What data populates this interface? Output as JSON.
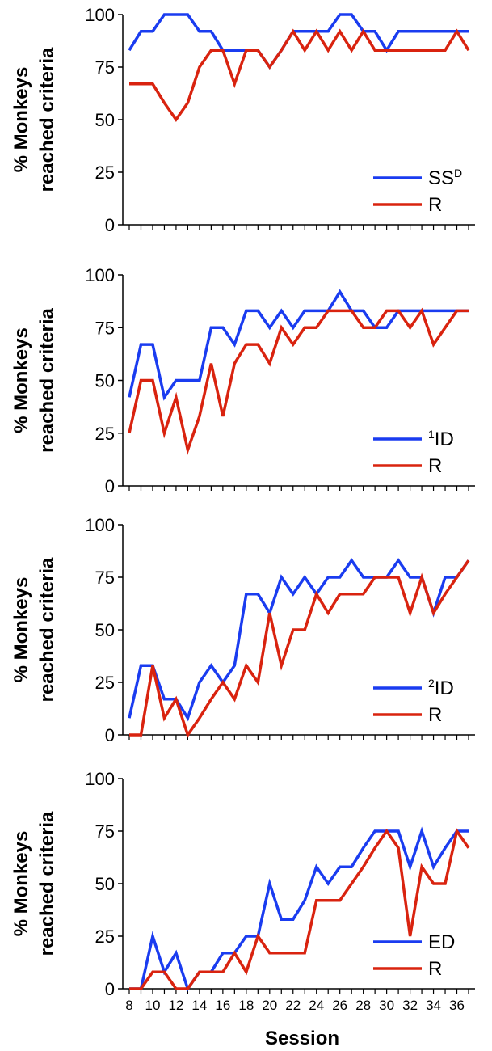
{
  "figure": {
    "xlabel": "Session"
  },
  "colors": {
    "series_a": "#1a3cf0",
    "series_b": "#d9230f",
    "axis": "#000000"
  },
  "chart_data": [
    {
      "type": "line",
      "ylabel_line1": "% Monkeys",
      "ylabel_line2": "reached criteria",
      "ylim": [
        0,
        100
      ],
      "yticks": [
        "0",
        "25",
        "50",
        "75",
        "100"
      ],
      "x": [
        8,
        9,
        10,
        11,
        12,
        13,
        14,
        15,
        16,
        17,
        18,
        19,
        20,
        21,
        22,
        23,
        24,
        25,
        26,
        27,
        28,
        29,
        30,
        31,
        32,
        33,
        34,
        35,
        36,
        37
      ],
      "legend": [
        {
          "base": "SS",
          "mark": "D",
          "mark_pos": "sup"
        },
        {
          "base": "R",
          "mark": "",
          "mark_pos": "none"
        }
      ],
      "series": [
        {
          "name": "SSᴰ",
          "values": [
            83,
            92,
            92,
            100,
            100,
            100,
            92,
            92,
            83,
            83,
            83,
            83,
            75,
            83,
            92,
            92,
            92,
            92,
            100,
            100,
            92,
            92,
            83,
            92,
            92,
            92,
            92,
            92,
            92,
            92
          ]
        },
        {
          "name": "R",
          "values": [
            67,
            67,
            67,
            58,
            50,
            58,
            75,
            83,
            83,
            67,
            83,
            83,
            75,
            83,
            92,
            83,
            92,
            83,
            92,
            83,
            92,
            83,
            83,
            83,
            83,
            83,
            83,
            83,
            92,
            83
          ]
        }
      ]
    },
    {
      "type": "line",
      "ylabel_line1": "% Monkeys",
      "ylabel_line2": "reached criteria",
      "ylim": [
        0,
        100
      ],
      "yticks": [
        "0",
        "25",
        "50",
        "75",
        "100"
      ],
      "x": [
        8,
        9,
        10,
        11,
        12,
        13,
        14,
        15,
        16,
        17,
        18,
        19,
        20,
        21,
        22,
        23,
        24,
        25,
        26,
        27,
        28,
        29,
        30,
        31,
        32,
        33,
        34,
        35,
        36,
        37
      ],
      "legend": [
        {
          "base": "ID",
          "mark": "1",
          "mark_pos": "pre"
        },
        {
          "base": "R",
          "mark": "",
          "mark_pos": "none"
        }
      ],
      "series": [
        {
          "name": "¹ID",
          "values": [
            42,
            67,
            67,
            42,
            50,
            50,
            50,
            75,
            75,
            67,
            83,
            83,
            75,
            83,
            75,
            83,
            83,
            83,
            92,
            83,
            83,
            75,
            75,
            83,
            83,
            83,
            83,
            83,
            83,
            83
          ]
        },
        {
          "name": "R",
          "values": [
            25,
            50,
            50,
            25,
            42,
            17,
            33,
            58,
            33,
            58,
            67,
            67,
            58,
            75,
            67,
            75,
            75,
            83,
            83,
            83,
            75,
            75,
            83,
            83,
            75,
            83,
            67,
            75,
            83,
            83
          ]
        }
      ]
    },
    {
      "type": "line",
      "ylabel_line1": "% Monkeys",
      "ylabel_line2": "reached criteria",
      "ylim": [
        0,
        100
      ],
      "yticks": [
        "0",
        "25",
        "50",
        "75",
        "100"
      ],
      "x": [
        8,
        9,
        10,
        11,
        12,
        13,
        14,
        15,
        16,
        17,
        18,
        19,
        20,
        21,
        22,
        23,
        24,
        25,
        26,
        27,
        28,
        29,
        30,
        31,
        32,
        33,
        34,
        35,
        36,
        37
      ],
      "legend": [
        {
          "base": "ID",
          "mark": "2",
          "mark_pos": "pre"
        },
        {
          "base": "R",
          "mark": "",
          "mark_pos": "none"
        }
      ],
      "series": [
        {
          "name": "²ID",
          "values": [
            8,
            33,
            33,
            17,
            17,
            8,
            25,
            33,
            25,
            33,
            67,
            67,
            58,
            75,
            67,
            75,
            67,
            75,
            75,
            83,
            75,
            75,
            75,
            83,
            75,
            75,
            58,
            75,
            75,
            83
          ]
        },
        {
          "name": "R",
          "values": [
            0,
            0,
            33,
            8,
            17,
            0,
            8,
            17,
            25,
            17,
            33,
            25,
            58,
            33,
            50,
            50,
            67,
            58,
            67,
            67,
            67,
            75,
            75,
            75,
            58,
            75,
            58,
            67,
            75,
            83
          ]
        }
      ]
    },
    {
      "type": "line",
      "ylabel_line1": "% Monkeys",
      "ylabel_line2": "reached criteria",
      "ylim": [
        0,
        100
      ],
      "yticks": [
        "0",
        "25",
        "50",
        "75",
        "100"
      ],
      "x": [
        8,
        9,
        10,
        11,
        12,
        13,
        14,
        15,
        16,
        17,
        18,
        19,
        20,
        21,
        22,
        23,
        24,
        25,
        26,
        27,
        28,
        29,
        30,
        31,
        32,
        33,
        34,
        35,
        36,
        37
      ],
      "xticks": [
        "8",
        "10",
        "12",
        "14",
        "16",
        "18",
        "20",
        "22",
        "24",
        "26",
        "28",
        "30",
        "32",
        "34",
        "36"
      ],
      "legend": [
        {
          "base": "ED",
          "mark": "",
          "mark_pos": "none"
        },
        {
          "base": "R",
          "mark": "",
          "mark_pos": "none"
        }
      ],
      "series": [
        {
          "name": "ED",
          "values": [
            0,
            0,
            25,
            8,
            17,
            0,
            8,
            8,
            17,
            17,
            25,
            25,
            50,
            33,
            33,
            42,
            58,
            50,
            58,
            58,
            67,
            75,
            75,
            75,
            58,
            75,
            58,
            67,
            75,
            75
          ]
        },
        {
          "name": "R",
          "values": [
            0,
            0,
            8,
            8,
            0,
            0,
            8,
            8,
            8,
            17,
            8,
            25,
            17,
            17,
            17,
            17,
            42,
            42,
            42,
            50,
            58,
            67,
            75,
            67,
            25,
            58,
            50,
            50,
            75,
            67
          ]
        }
      ]
    }
  ]
}
